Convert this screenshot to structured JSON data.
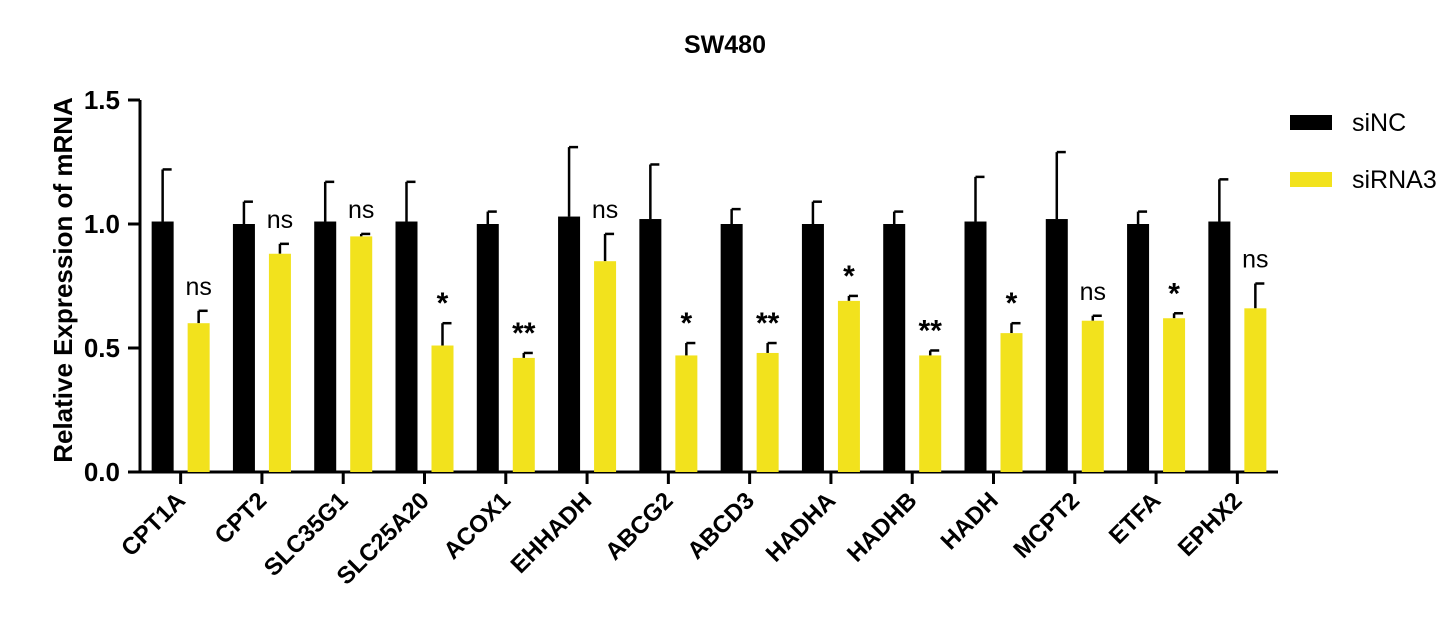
{
  "chart_data": {
    "type": "bar",
    "title": "SW480",
    "xlabel": "",
    "ylabel": "Relative Expression of mRNA",
    "ylim": [
      0,
      1.5
    ],
    "yticks": [
      "0.0",
      "0.5",
      "1.0",
      "1.5"
    ],
    "grid": false,
    "legend_position": "right",
    "categories": [
      "CPT1A",
      "CPT2",
      "SLC35G1",
      "SLC25A20",
      "ACOX1",
      "EHHADH",
      "ABCG2",
      "ABCD3",
      "HADHA",
      "HADHB",
      "HADH",
      "MCPT2",
      "ETFA",
      "EPHX2"
    ],
    "series": [
      {
        "name": "siNC",
        "color": "#000000",
        "values": [
          1.01,
          1.0,
          1.01,
          1.01,
          1.0,
          1.03,
          1.02,
          1.0,
          1.0,
          1.0,
          1.01,
          1.02,
          1.0,
          1.01
        ],
        "errors": [
          0.21,
          0.09,
          0.16,
          0.16,
          0.05,
          0.28,
          0.22,
          0.06,
          0.09,
          0.05,
          0.18,
          0.27,
          0.05,
          0.17
        ]
      },
      {
        "name": "siRNA3",
        "color": "#f2e21d",
        "values": [
          0.6,
          0.88,
          0.95,
          0.51,
          0.46,
          0.85,
          0.47,
          0.48,
          0.69,
          0.47,
          0.56,
          0.61,
          0.62,
          0.66
        ],
        "errors": [
          0.05,
          0.04,
          0.01,
          0.09,
          0.02,
          0.11,
          0.05,
          0.04,
          0.02,
          0.02,
          0.04,
          0.02,
          0.02,
          0.1
        ]
      }
    ],
    "significance": [
      "ns",
      "ns",
      "ns",
      "*",
      "**",
      "ns",
      "*",
      "**",
      "*",
      "**",
      "*",
      "ns",
      "*",
      "ns"
    ]
  }
}
